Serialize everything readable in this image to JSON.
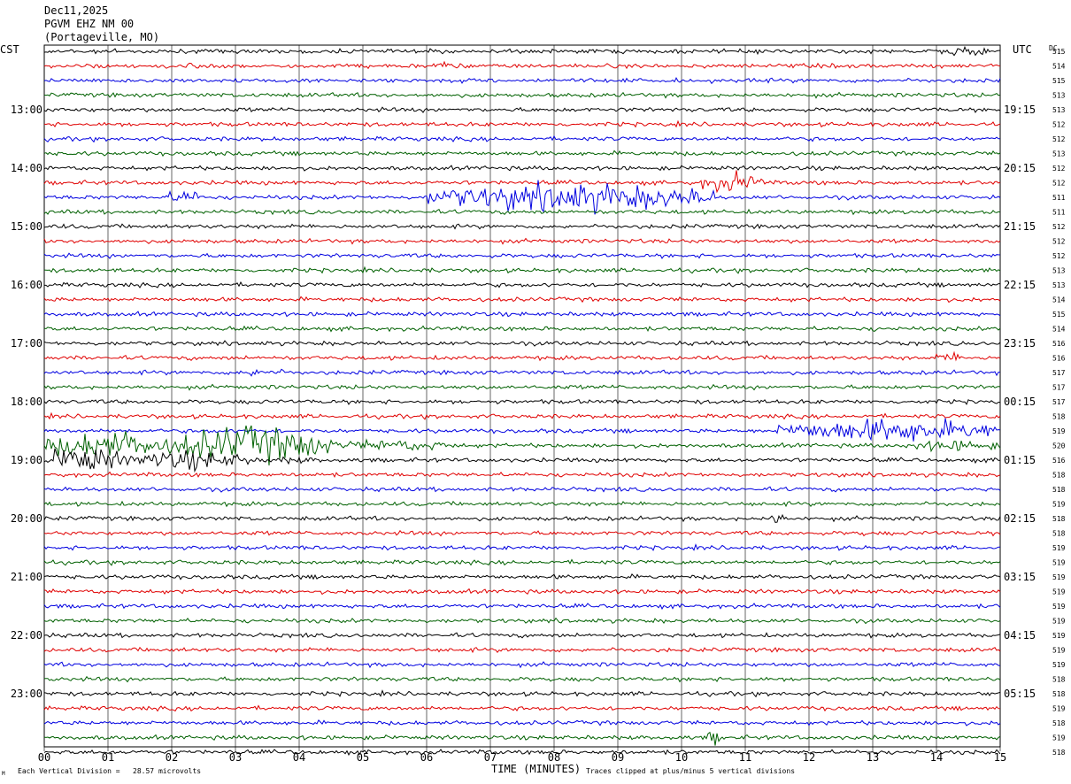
{
  "header": {
    "date": "Dec11,2025",
    "station": "PGVM EHZ NM 00",
    "location": "(Portageville, MO)"
  },
  "labels": {
    "left_zone": "CST",
    "right_zone": "UTC",
    "dc_header": "DC",
    "xlabel": "TIME (MINUTES)",
    "vertical_division": "Each Vertical Division =   28.57 microvolts",
    "clipping_note": "Traces clipped at plus/minus 5 vertical divisions",
    "corner_mark": "M"
  },
  "colors": {
    "trace_cycle": [
      "#000000",
      "#e00000",
      "#0000e0",
      "#006000"
    ],
    "grid": "#000000"
  },
  "chart_data": {
    "type": "line",
    "xlim": [
      0,
      15
    ],
    "x_ticks": [
      "00",
      "01",
      "02",
      "03",
      "04",
      "05",
      "06",
      "07",
      "08",
      "09",
      "10",
      "11",
      "12",
      "13",
      "14",
      "15"
    ],
    "lines_per_hour": 4,
    "minutes_per_line": 15,
    "left_hour_labels": [
      "13:00",
      "14:00",
      "15:00",
      "16:00",
      "17:00",
      "18:00",
      "19:00",
      "20:00",
      "21:00",
      "22:00",
      "23:00"
    ],
    "right_hour_labels": [
      "19:15",
      "20:15",
      "21:15",
      "22:15",
      "23:15",
      "00:15",
      "01:15",
      "02:15",
      "03:15",
      "04:15",
      "05:15"
    ],
    "dc_offsets": [
      515,
      514,
      515,
      513,
      513,
      512,
      512,
      513,
      512,
      512,
      511,
      511,
      512,
      512,
      512,
      513,
      513,
      514,
      515,
      514,
      516,
      516,
      517,
      517,
      517,
      518,
      519,
      520,
      516,
      518,
      518,
      519,
      518,
      518,
      519,
      519,
      519,
      519,
      519,
      519,
      519,
      519,
      519,
      518,
      518,
      519,
      518,
      519,
      518
    ],
    "traces": [
      {
        "noise": 1.6,
        "events": [
          {
            "start": 14.0,
            "end": 14.8,
            "amp": 4
          }
        ]
      },
      {
        "noise": 1.6,
        "events": [
          {
            "start": 2.0,
            "end": 2.6,
            "amp": 3
          },
          {
            "start": 6.1,
            "end": 6.5,
            "amp": 4
          }
        ]
      },
      {
        "noise": 1.6,
        "events": []
      },
      {
        "noise": 1.6,
        "events": [
          {
            "start": 11.0,
            "end": 11.3,
            "amp": 2
          }
        ]
      },
      {
        "noise": 1.6,
        "events": [
          {
            "start": 0.0,
            "end": 1.2,
            "amp": 2
          },
          {
            "start": 1.9,
            "end": 2.3,
            "amp": 2
          }
        ]
      },
      {
        "noise": 1.6,
        "events": []
      },
      {
        "noise": 1.6,
        "events": []
      },
      {
        "noise": 1.6,
        "events": []
      },
      {
        "noise": 1.6,
        "events": []
      },
      {
        "noise": 1.6,
        "events": [
          {
            "start": 10.3,
            "end": 11.3,
            "amp": 8
          }
        ]
      },
      {
        "noise": 1.6,
        "events": [
          {
            "start": 1.9,
            "end": 2.5,
            "amp": 6
          },
          {
            "start": 6.0,
            "end": 10.5,
            "amp": 12
          }
        ]
      },
      {
        "noise": 1.6,
        "events": [
          {
            "start": 4.5,
            "end": 5.2,
            "amp": 2
          },
          {
            "start": 13.0,
            "end": 15.0,
            "amp": 2
          }
        ]
      },
      {
        "noise": 1.6,
        "events": [
          {
            "start": 0.0,
            "end": 0.6,
            "amp": 2
          }
        ]
      },
      {
        "noise": 1.6,
        "events": []
      },
      {
        "noise": 1.6,
        "events": []
      },
      {
        "noise": 1.6,
        "events": [
          {
            "start": 5.5,
            "end": 6.5,
            "amp": 2
          }
        ]
      },
      {
        "noise": 1.6,
        "events": []
      },
      {
        "noise": 1.6,
        "events": [
          {
            "start": 2.2,
            "end": 3.0,
            "amp": 2
          }
        ]
      },
      {
        "noise": 1.6,
        "events": [
          {
            "start": 3.0,
            "end": 3.3,
            "amp": 2
          }
        ]
      },
      {
        "noise": 1.6,
        "events": [
          {
            "start": 12.5,
            "end": 13.5,
            "amp": 2
          }
        ]
      },
      {
        "noise": 1.6,
        "events": [
          {
            "start": 5.8,
            "end": 6.4,
            "amp": 2
          },
          {
            "start": 14.2,
            "end": 14.6,
            "amp": 2
          }
        ]
      },
      {
        "noise": 1.6,
        "events": [
          {
            "start": 14.0,
            "end": 14.4,
            "amp": 5
          }
        ]
      },
      {
        "noise": 1.6,
        "events": [
          {
            "start": 3.0,
            "end": 3.8,
            "amp": 4
          }
        ]
      },
      {
        "noise": 1.6,
        "events": []
      },
      {
        "noise": 1.6,
        "events": []
      },
      {
        "noise": 1.6,
        "events": []
      },
      {
        "noise": 1.6,
        "events": [
          {
            "start": 11.5,
            "end": 15.0,
            "amp": 10
          }
        ]
      },
      {
        "noise": 1.6,
        "events": [
          {
            "start": 0.0,
            "end": 2.0,
            "amp": 12
          },
          {
            "start": 2.0,
            "end": 4.5,
            "amp": 16
          },
          {
            "start": 4.5,
            "end": 6.5,
            "amp": 5
          },
          {
            "start": 13.5,
            "end": 15.0,
            "amp": 5
          }
        ]
      },
      {
        "noise": 1.6,
        "events": [
          {
            "start": 0.0,
            "end": 1.2,
            "amp": 12
          },
          {
            "start": 1.2,
            "end": 3.3,
            "amp": 8
          },
          {
            "start": 3.3,
            "end": 4.5,
            "amp": 3
          }
        ]
      },
      {
        "noise": 1.6,
        "events": []
      },
      {
        "noise": 1.6,
        "events": []
      },
      {
        "noise": 1.6,
        "events": []
      },
      {
        "noise": 1.6,
        "events": [
          {
            "start": 11.4,
            "end": 11.6,
            "amp": 8
          }
        ]
      },
      {
        "noise": 1.6,
        "events": [
          {
            "start": 12.7,
            "end": 12.9,
            "amp": 3
          }
        ]
      },
      {
        "noise": 1.6,
        "events": []
      },
      {
        "noise": 1.6,
        "events": []
      },
      {
        "noise": 1.6,
        "events": [
          {
            "start": 7.8,
            "end": 8.3,
            "amp": 2
          }
        ]
      },
      {
        "noise": 1.6,
        "events": []
      },
      {
        "noise": 1.6,
        "events": []
      },
      {
        "noise": 1.6,
        "events": []
      },
      {
        "noise": 1.6,
        "events": []
      },
      {
        "noise": 1.6,
        "events": [
          {
            "start": 2.0,
            "end": 2.3,
            "amp": 2
          }
        ]
      },
      {
        "noise": 1.6,
        "events": []
      },
      {
        "noise": 1.6,
        "events": []
      },
      {
        "noise": 1.6,
        "events": []
      },
      {
        "noise": 1.6,
        "events": []
      },
      {
        "noise": 1.6,
        "events": []
      },
      {
        "noise": 1.6,
        "events": [
          {
            "start": 10.4,
            "end": 10.6,
            "amp": 7
          }
        ]
      },
      {
        "noise": 1.6,
        "events": []
      }
    ]
  }
}
